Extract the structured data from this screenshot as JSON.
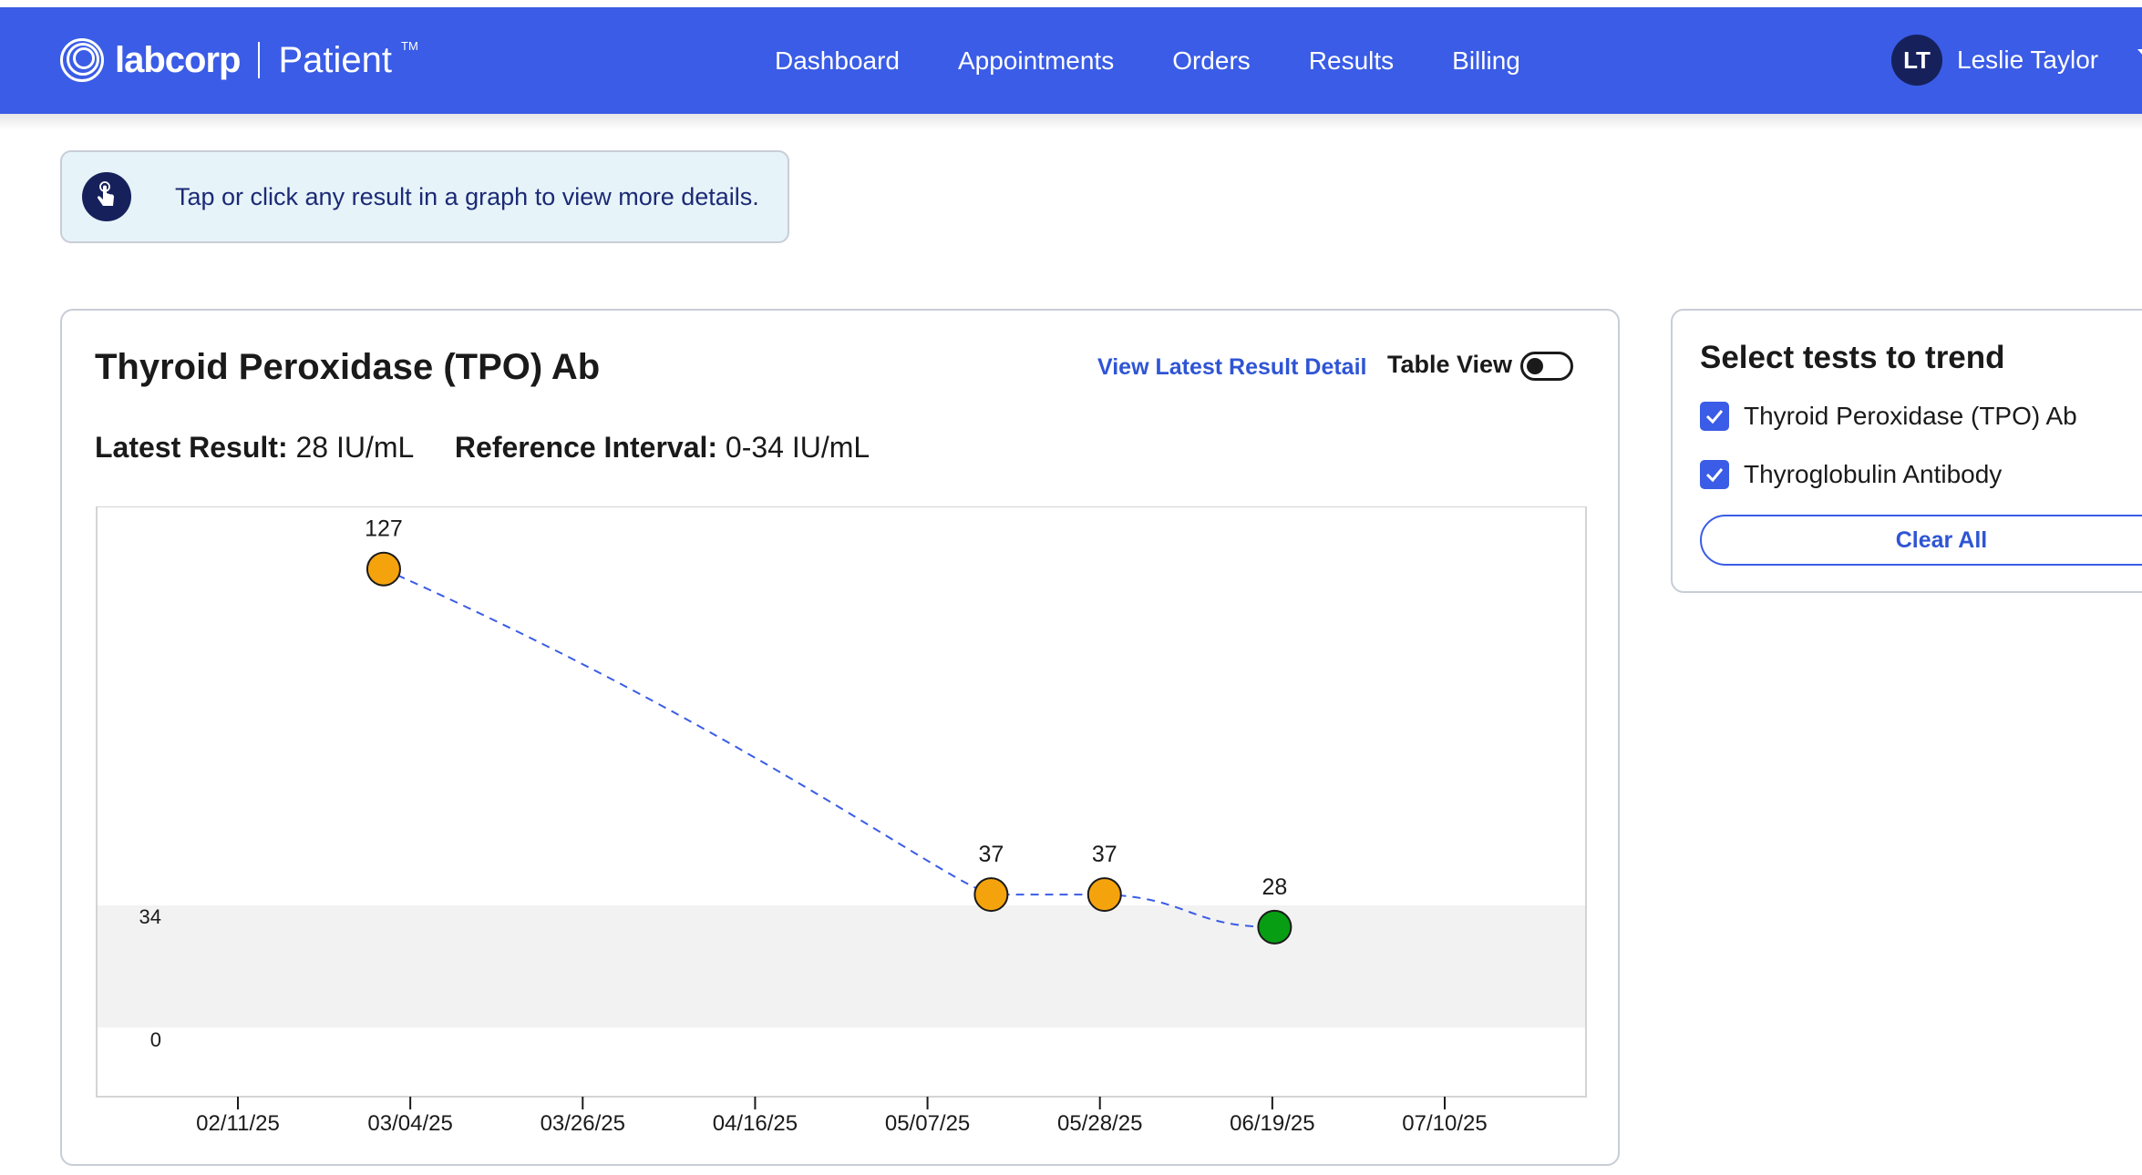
{
  "header": {
    "logo_word": "labcorp",
    "logo_sub": "Patient",
    "logo_tm": "TM",
    "nav": [
      "Dashboard",
      "Appointments",
      "Orders",
      "Results",
      "Billing"
    ],
    "user_initials": "LT",
    "user_name": "Leslie Taylor"
  },
  "hint": {
    "text": "Tap or click any result in a graph to view more details."
  },
  "card": {
    "title": "Thyroid Peroxidase (TPO) Ab",
    "detail_link": "View Latest Result Detail",
    "table_view_label": "Table View",
    "table_view_on": false,
    "latest_label": "Latest Result",
    "latest_value": "28 IU/mL",
    "reference_label": "Reference Interval",
    "reference_value": "0-34 IU/mL"
  },
  "chart_data": {
    "type": "scatter",
    "x": [
      "2025-03-01",
      "2025-05-15",
      "2025-05-29",
      "2025-06-19"
    ],
    "y": [
      127,
      37,
      37,
      28
    ],
    "point_labels": [
      "127",
      "37",
      "37",
      "28"
    ],
    "point_status": [
      "out-of-range",
      "out-of-range",
      "out-of-range",
      "in-range"
    ],
    "x_ticks": [
      "02/11/25",
      "03/04/25",
      "03/26/25",
      "04/16/25",
      "05/07/25",
      "05/28/25",
      "06/19/25",
      "07/10/25"
    ],
    "y_ticks": [
      34,
      0
    ],
    "reference_range": [
      0,
      34
    ],
    "connector": "dashed",
    "colors": {
      "out_of_range": "#f5a30d",
      "in_range": "#089e14",
      "line": "#3a5ce6",
      "band": "#f2f2f2"
    }
  },
  "side": {
    "title": "Select tests to trend",
    "tests": [
      {
        "label": "Thyroid Peroxidase (TPO) Ab",
        "checked": true
      },
      {
        "label": "Thyroglobulin Antibody",
        "checked": true
      }
    ],
    "clear_label": "Clear All"
  }
}
